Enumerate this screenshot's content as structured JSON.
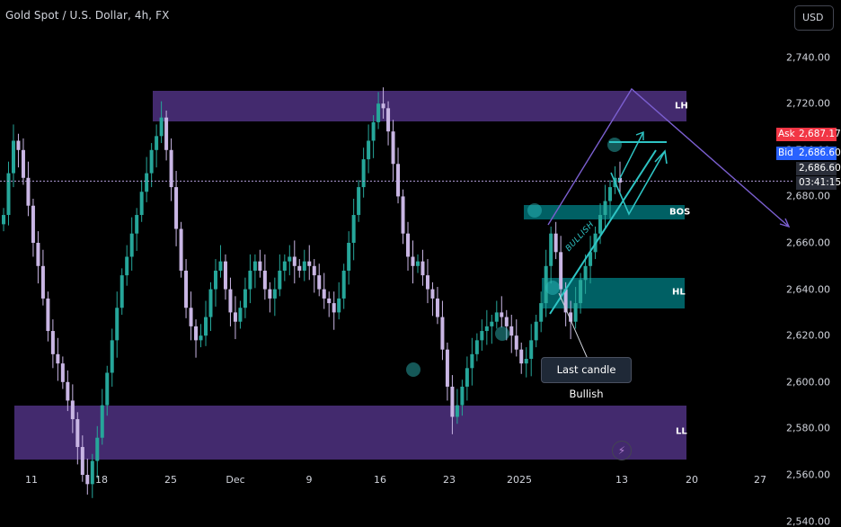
{
  "header": {
    "title": "Gold Spot / U.S. Dollar, 4h, FX",
    "currency_button": "USD"
  },
  "price_tags": {
    "ask_label": "Ask",
    "ask_value": "2,687.17",
    "bid_label": "Bid",
    "bid_value": "2,686.60",
    "last_value": "2,686.60",
    "countdown": "03:41:15"
  },
  "annotations": {
    "zone_labels": [
      "LH",
      "BOS",
      "HL",
      "LL"
    ],
    "callout": "Last candle Bullish",
    "trend_label": "BULLISH"
  },
  "colors": {
    "up": "#26a69a",
    "down": "#c9b6e4",
    "zone_purple": "#4a2f7a",
    "zone_teal": "#006064",
    "annotation": "#2ec4c4",
    "projection": "#7b5fd0",
    "ask": "#f23645",
    "bid": "#2962ff"
  },
  "chart_data": {
    "type": "candlestick",
    "title": "Gold Spot / U.S. Dollar, 4h, FX",
    "ylim": [
      2535,
      2760
    ],
    "y_ticks": [
      2540,
      2560,
      2580,
      2600,
      2620,
      2640,
      2660,
      2680,
      2700,
      2720,
      2740
    ],
    "y_tick_labels": [
      "2,540.00",
      "2,560.00",
      "2,580.00",
      "2,600.00",
      "2,620.00",
      "2,640.00",
      "2,660.00",
      "2,680.00",
      "2,700.00",
      "2,720.00",
      "2,740.00"
    ],
    "x_tick_labels": [
      "11",
      "18",
      "25",
      "Dec",
      "9",
      "16",
      "23",
      "2025",
      "13",
      "20",
      "27"
    ],
    "last_price": 2686.6,
    "ohlc_closes": [
      2672,
      2690,
      2704,
      2700,
      2688,
      2676,
      2660,
      2650,
      2636,
      2622,
      2612,
      2608,
      2600,
      2592,
      2584,
      2572,
      2560,
      2556,
      2566,
      2576,
      2590,
      2604,
      2618,
      2632,
      2646,
      2654,
      2664,
      2672,
      2682,
      2690,
      2700,
      2706,
      2714,
      2700,
      2684,
      2666,
      2648,
      2632,
      2624,
      2618,
      2620,
      2628,
      2640,
      2648,
      2652,
      2640,
      2630,
      2626,
      2632,
      2640,
      2648,
      2652,
      2648,
      2640,
      2636,
      2640,
      2648,
      2652,
      2654,
      2650,
      2648,
      2652,
      2650,
      2646,
      2640,
      2636,
      2634,
      2630,
      2636,
      2648,
      2660,
      2672,
      2684,
      2696,
      2704,
      2712,
      2720,
      2718,
      2708,
      2694,
      2680,
      2664,
      2654,
      2650,
      2652,
      2646,
      2640,
      2636,
      2628,
      2614,
      2598,
      2585,
      2590,
      2598,
      2606,
      2612,
      2618,
      2622,
      2624,
      2626,
      2630,
      2628,
      2624,
      2620,
      2614,
      2608,
      2610,
      2618,
      2626,
      2634,
      2650,
      2664,
      2656,
      2640,
      2630,
      2626,
      2634,
      2644,
      2650,
      2656,
      2664,
      2672,
      2678,
      2684,
      2688,
      2686
    ]
  }
}
